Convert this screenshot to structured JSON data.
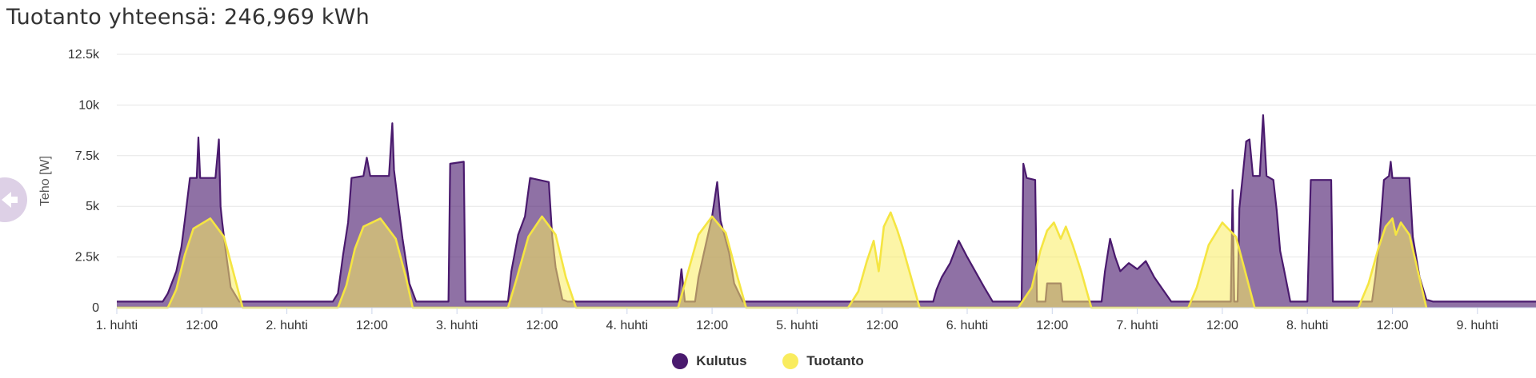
{
  "title": "Tuotanto yhteensä: 246,969 kWh",
  "back_icon": "arrow-left-icon",
  "chart_data": {
    "type": "area",
    "ylabel": "Teho [W]",
    "ylim": [
      0,
      12500
    ],
    "yticks": [
      0,
      2500,
      5000,
      7500,
      10000,
      12500
    ],
    "ytick_labels": [
      "0",
      "2.5k",
      "5k",
      "7.5k",
      "10k",
      "12.5k"
    ],
    "xlim": [
      0,
      8.7
    ],
    "xticks": [
      0,
      0.5,
      1,
      1.5,
      2,
      2.5,
      3,
      3.5,
      4,
      4.5,
      5,
      5.5,
      6,
      6.5,
      7,
      7.5,
      8
    ],
    "xtick_labels": [
      "1. huhti",
      "12:00",
      "2. huhti",
      "12:00",
      "3. huhti",
      "12:00",
      "4. huhti",
      "12:00",
      "5. huhti",
      "12:00",
      "6. huhti",
      "12:00",
      "7. huhti",
      "12:00",
      "8. huhti",
      "12:00",
      "9. huhti"
    ],
    "grid": true,
    "legend_position": "bottom-center",
    "series": [
      {
        "name": "Kulutus",
        "color": "#4a1a6e",
        "points": [
          [
            0,
            300
          ],
          [
            0.27,
            300
          ],
          [
            0.3,
            700
          ],
          [
            0.35,
            1800
          ],
          [
            0.38,
            3000
          ],
          [
            0.4,
            4300
          ],
          [
            0.43,
            6400
          ],
          [
            0.47,
            6400
          ],
          [
            0.48,
            8400
          ],
          [
            0.49,
            6400
          ],
          [
            0.58,
            6400
          ],
          [
            0.6,
            8300
          ],
          [
            0.61,
            5000
          ],
          [
            0.62,
            4200
          ],
          [
            0.64,
            2800
          ],
          [
            0.67,
            1000
          ],
          [
            0.72,
            300
          ],
          [
            1.27,
            300
          ],
          [
            1.3,
            700
          ],
          [
            1.33,
            2600
          ],
          [
            1.36,
            4200
          ],
          [
            1.38,
            6400
          ],
          [
            1.45,
            6500
          ],
          [
            1.47,
            7400
          ],
          [
            1.49,
            6500
          ],
          [
            1.6,
            6500
          ],
          [
            1.62,
            9100
          ],
          [
            1.63,
            6800
          ],
          [
            1.65,
            5400
          ],
          [
            1.68,
            3400
          ],
          [
            1.72,
            1200
          ],
          [
            1.76,
            300
          ],
          [
            1.95,
            300
          ],
          [
            1.96,
            7100
          ],
          [
            2.04,
            7200
          ],
          [
            2.05,
            300
          ],
          [
            2.3,
            300
          ],
          [
            2.32,
            1800
          ],
          [
            2.36,
            3600
          ],
          [
            2.4,
            4500
          ],
          [
            2.43,
            6400
          ],
          [
            2.54,
            6200
          ],
          [
            2.56,
            3500
          ],
          [
            2.58,
            2000
          ],
          [
            2.62,
            400
          ],
          [
            2.65,
            300
          ],
          [
            3.3,
            300
          ],
          [
            3.32,
            1900
          ],
          [
            3.34,
            300
          ],
          [
            3.4,
            300
          ],
          [
            3.42,
            1500
          ],
          [
            3.46,
            3000
          ],
          [
            3.5,
            4500
          ],
          [
            3.53,
            6200
          ],
          [
            3.55,
            4300
          ],
          [
            3.6,
            2700
          ],
          [
            3.63,
            1200
          ],
          [
            3.68,
            300
          ],
          [
            4.8,
            300
          ],
          [
            4.82,
            900
          ],
          [
            4.85,
            1500
          ],
          [
            4.9,
            2200
          ],
          [
            4.95,
            3300
          ],
          [
            5.0,
            2500
          ],
          [
            5.1,
            1000
          ],
          [
            5.15,
            300
          ],
          [
            5.32,
            300
          ],
          [
            5.33,
            7100
          ],
          [
            5.35,
            6400
          ],
          [
            5.4,
            6300
          ],
          [
            5.41,
            300
          ],
          [
            5.46,
            300
          ],
          [
            5.47,
            1200
          ],
          [
            5.55,
            1200
          ],
          [
            5.56,
            300
          ],
          [
            5.79,
            300
          ],
          [
            5.81,
            1800
          ],
          [
            5.84,
            3400
          ],
          [
            5.87,
            2500
          ],
          [
            5.9,
            1800
          ],
          [
            5.95,
            2200
          ],
          [
            6.0,
            1900
          ],
          [
            6.05,
            2300
          ],
          [
            6.1,
            1500
          ],
          [
            6.15,
            900
          ],
          [
            6.2,
            300
          ],
          [
            6.55,
            300
          ],
          [
            6.56,
            5800
          ],
          [
            6.57,
            300
          ],
          [
            6.59,
            300
          ],
          [
            6.6,
            4900
          ],
          [
            6.62,
            6500
          ],
          [
            6.64,
            8200
          ],
          [
            6.66,
            8300
          ],
          [
            6.68,
            6500
          ],
          [
            6.72,
            6500
          ],
          [
            6.74,
            9500
          ],
          [
            6.76,
            6500
          ],
          [
            6.8,
            6300
          ],
          [
            6.82,
            4800
          ],
          [
            6.84,
            2800
          ],
          [
            6.86,
            2000
          ],
          [
            6.9,
            300
          ],
          [
            7.0,
            300
          ],
          [
            7.02,
            6300
          ],
          [
            7.14,
            6300
          ],
          [
            7.15,
            300
          ],
          [
            7.38,
            300
          ],
          [
            7.4,
            1500
          ],
          [
            7.42,
            3000
          ],
          [
            7.45,
            6300
          ],
          [
            7.48,
            6500
          ],
          [
            7.49,
            7200
          ],
          [
            7.5,
            6400
          ],
          [
            7.55,
            6400
          ],
          [
            7.58,
            6400
          ],
          [
            7.6,
            6400
          ],
          [
            7.62,
            3500
          ],
          [
            7.66,
            1500
          ],
          [
            7.7,
            400
          ],
          [
            7.74,
            300
          ],
          [
            8.6,
            300
          ],
          [
            8.63,
            700
          ],
          [
            8.66,
            200
          ],
          [
            8.7,
            200
          ]
        ]
      },
      {
        "name": "Tuotanto",
        "color": "#f9ec5e",
        "points": [
          [
            0,
            0
          ],
          [
            0.3,
            0
          ],
          [
            0.35,
            900
          ],
          [
            0.4,
            2600
          ],
          [
            0.45,
            3900
          ],
          [
            0.55,
            4400
          ],
          [
            0.63,
            3500
          ],
          [
            0.69,
            1600
          ],
          [
            0.74,
            0
          ],
          [
            1.3,
            0
          ],
          [
            1.35,
            1100
          ],
          [
            1.4,
            2900
          ],
          [
            1.45,
            4000
          ],
          [
            1.55,
            4400
          ],
          [
            1.64,
            3400
          ],
          [
            1.7,
            1500
          ],
          [
            1.74,
            0
          ],
          [
            2.3,
            0
          ],
          [
            2.35,
            1400
          ],
          [
            2.42,
            3500
          ],
          [
            2.5,
            4500
          ],
          [
            2.58,
            3600
          ],
          [
            2.64,
            1500
          ],
          [
            2.7,
            0
          ],
          [
            3.3,
            0
          ],
          [
            3.35,
            1500
          ],
          [
            3.42,
            3600
          ],
          [
            3.5,
            4500
          ],
          [
            3.58,
            3700
          ],
          [
            3.65,
            1500
          ],
          [
            3.7,
            0
          ],
          [
            4.3,
            0
          ],
          [
            4.36,
            800
          ],
          [
            4.41,
            2300
          ],
          [
            4.45,
            3300
          ],
          [
            4.48,
            1800
          ],
          [
            4.51,
            4000
          ],
          [
            4.55,
            4700
          ],
          [
            4.59,
            3800
          ],
          [
            4.62,
            3000
          ],
          [
            4.66,
            1800
          ],
          [
            4.72,
            0
          ],
          [
            5.3,
            0
          ],
          [
            5.38,
            1000
          ],
          [
            5.43,
            2800
          ],
          [
            5.47,
            3800
          ],
          [
            5.51,
            4200
          ],
          [
            5.55,
            3400
          ],
          [
            5.58,
            4000
          ],
          [
            5.62,
            3100
          ],
          [
            5.67,
            1800
          ],
          [
            5.73,
            0
          ],
          [
            6.3,
            0
          ],
          [
            6.35,
            1000
          ],
          [
            6.42,
            3100
          ],
          [
            6.5,
            4200
          ],
          [
            6.58,
            3500
          ],
          [
            6.64,
            1600
          ],
          [
            6.69,
            0
          ],
          [
            7.3,
            0
          ],
          [
            7.36,
            1200
          ],
          [
            7.42,
            3000
          ],
          [
            7.46,
            4000
          ],
          [
            7.5,
            4400
          ],
          [
            7.52,
            3600
          ],
          [
            7.55,
            4200
          ],
          [
            7.6,
            3600
          ],
          [
            7.65,
            1800
          ],
          [
            7.7,
            0
          ]
        ]
      }
    ]
  },
  "legend": {
    "consumption_label": "Kulutus",
    "production_label": "Tuotanto"
  }
}
